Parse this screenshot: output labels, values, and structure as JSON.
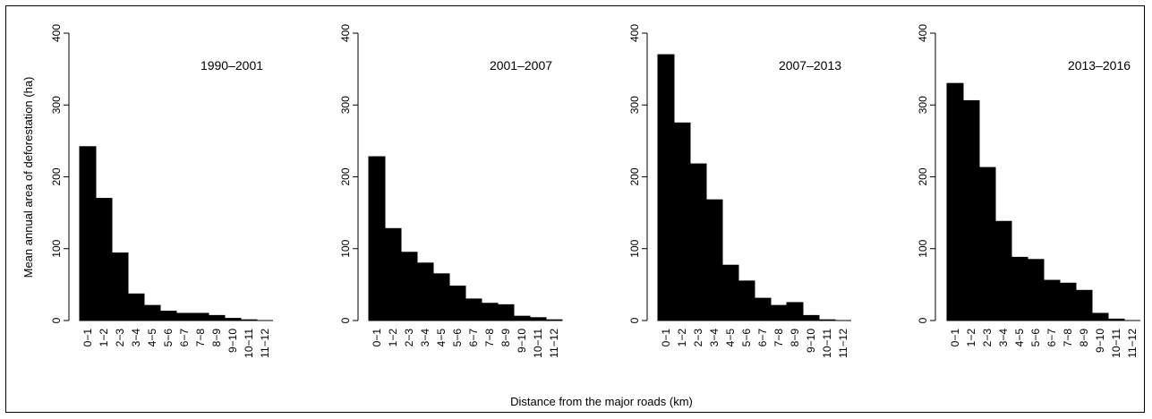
{
  "chart_data": [
    {
      "type": "bar",
      "title": "1990–2001",
      "categories": [
        "0−1",
        "1−2",
        "2−3",
        "3−4",
        "4−5",
        "5−6",
        "6−7",
        "7−8",
        "8−9",
        "9−10",
        "10−11",
        "11−12"
      ],
      "values": [
        242,
        170,
        94,
        37,
        21,
        13,
        10,
        10,
        7,
        3,
        1,
        0
      ],
      "ylabel": "Mean annual area of deforestation (ha)",
      "yticks": [
        "0",
        "100",
        "200",
        "300",
        "400"
      ],
      "ylim": [
        0,
        400
      ]
    },
    {
      "type": "bar",
      "title": "2001–2007",
      "categories": [
        "0−1",
        "1−2",
        "2−3",
        "3−4",
        "4−5",
        "5−6",
        "6−7",
        "7−8",
        "8−9",
        "9−10",
        "10−11",
        "11−12"
      ],
      "values": [
        228,
        128,
        95,
        80,
        65,
        48,
        30,
        24,
        22,
        6,
        4,
        1
      ],
      "yticks": [
        "0",
        "100",
        "200",
        "300",
        "400"
      ],
      "ylim": [
        0,
        400
      ]
    },
    {
      "type": "bar",
      "title": "2007–2013",
      "categories": [
        "0−1",
        "1−2",
        "2−3",
        "3−4",
        "4−5",
        "5−6",
        "6−7",
        "7−8",
        "8−9",
        "9−10",
        "10−11",
        "11−12"
      ],
      "values": [
        370,
        275,
        218,
        168,
        77,
        55,
        31,
        21,
        25,
        7,
        1,
        0
      ],
      "yticks": [
        "0",
        "100",
        "200",
        "300",
        "400"
      ],
      "ylim": [
        0,
        400
      ]
    },
    {
      "type": "bar",
      "title": "2013–2016",
      "categories": [
        "0−1",
        "1−2",
        "2−3",
        "3−4",
        "4−5",
        "5−6",
        "6−7",
        "7−8",
        "8−9",
        "9−10",
        "10−11",
        "11−12"
      ],
      "values": [
        330,
        306,
        213,
        138,
        88,
        85,
        56,
        52,
        42,
        10,
        2,
        0
      ],
      "yticks": [
        "0",
        "100",
        "200",
        "300",
        "400"
      ],
      "ylim": [
        0,
        400
      ]
    }
  ],
  "shared": {
    "xlabel": "Distance from the major roads (km)",
    "bar_color": "#000000"
  }
}
